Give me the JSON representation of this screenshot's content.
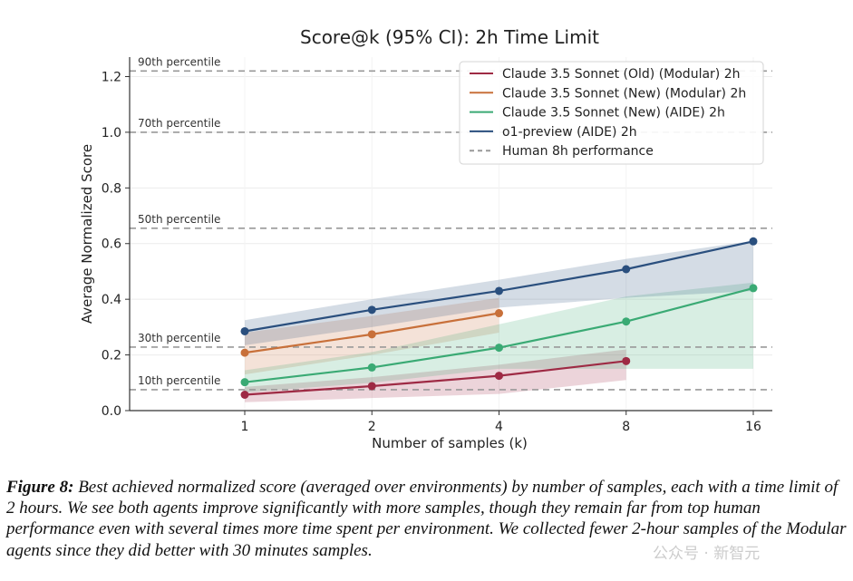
{
  "chart_data": {
    "type": "line",
    "title": "Score@k (95% CI): 2h Time Limit",
    "xlabel": "Number of samples (k)",
    "ylabel": "Average Normalized Score",
    "x_scale": "log2",
    "x_ticks": [
      "1",
      "2",
      "4",
      "8",
      "16"
    ],
    "y_ticks": [
      "0.0",
      "0.2",
      "0.4",
      "0.6",
      "0.8",
      "1.0",
      "1.2"
    ],
    "ylim": [
      0,
      1.27
    ],
    "grid": true,
    "legend_position": "top-right",
    "series": [
      {
        "name": "Claude 3.5 Sonnet (Old) (Modular) 2h",
        "color": "#9e2a44",
        "x": [
          1,
          2,
          4,
          8
        ],
        "y": [
          0.057,
          0.088,
          0.125,
          0.178
        ],
        "ci_low": [
          0.03,
          0.045,
          0.06,
          0.11
        ],
        "ci_high": [
          0.085,
          0.12,
          0.165,
          0.22
        ]
      },
      {
        "name": "Claude 3.5 Sonnet (New) (Modular) 2h",
        "color": "#c8703a",
        "x": [
          1,
          2,
          4
        ],
        "y": [
          0.208,
          0.274,
          0.35
        ],
        "ci_low": [
          0.13,
          0.2,
          0.28
        ],
        "ci_high": [
          0.28,
          0.34,
          0.405
        ]
      },
      {
        "name": "Claude 3.5 Sonnet (New) (AIDE) 2h",
        "color": "#3aaa74",
        "x": [
          1,
          2,
          4,
          8,
          16
        ],
        "y": [
          0.102,
          0.155,
          0.226,
          0.32,
          0.44
        ],
        "ci_low": [
          0.065,
          0.1,
          0.15,
          0.15,
          0.15
        ],
        "ci_high": [
          0.145,
          0.21,
          0.31,
          0.41,
          0.46
        ]
      },
      {
        "name": "o1-preview (AIDE) 2h",
        "color": "#2a4f7e",
        "x": [
          1,
          2,
          4,
          8,
          16
        ],
        "y": [
          0.285,
          0.362,
          0.43,
          0.508,
          0.608
        ],
        "ci_low": [
          0.235,
          0.3,
          0.37,
          0.405,
          0.43
        ],
        "ci_high": [
          0.325,
          0.4,
          0.47,
          0.545,
          0.61
        ]
      }
    ],
    "reference_lines": {
      "legend_label": "Human 8h performance",
      "color": "#999999",
      "lines": [
        {
          "label": "90th percentile",
          "y": 1.22
        },
        {
          "label": "70th percentile",
          "y": 1.0
        },
        {
          "label": "50th percentile",
          "y": 0.655
        },
        {
          "label": "30th percentile",
          "y": 0.228
        },
        {
          "label": "10th percentile",
          "y": 0.075
        }
      ]
    }
  },
  "caption": {
    "label": "Figure 8:",
    "text": " Best achieved normalized score (averaged over environments) by number of samples, each with a time limit of 2 hours. We see both agents improve significantly with more samples, though they remain far from top human performance even with several times more time spent per environment. We collected fewer 2-hour samples of the Modular agents since they did better with 30 minutes samples."
  },
  "watermark": "公众号 · 新智元"
}
